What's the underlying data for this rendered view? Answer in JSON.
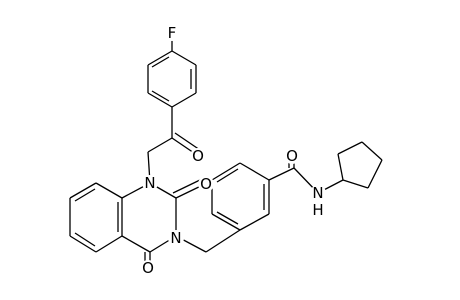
{
  "atoms": {
    "labels": [
      "F",
      "O",
      "N",
      "O",
      "N",
      "O",
      "O",
      "N",
      "H"
    ]
  }
}
